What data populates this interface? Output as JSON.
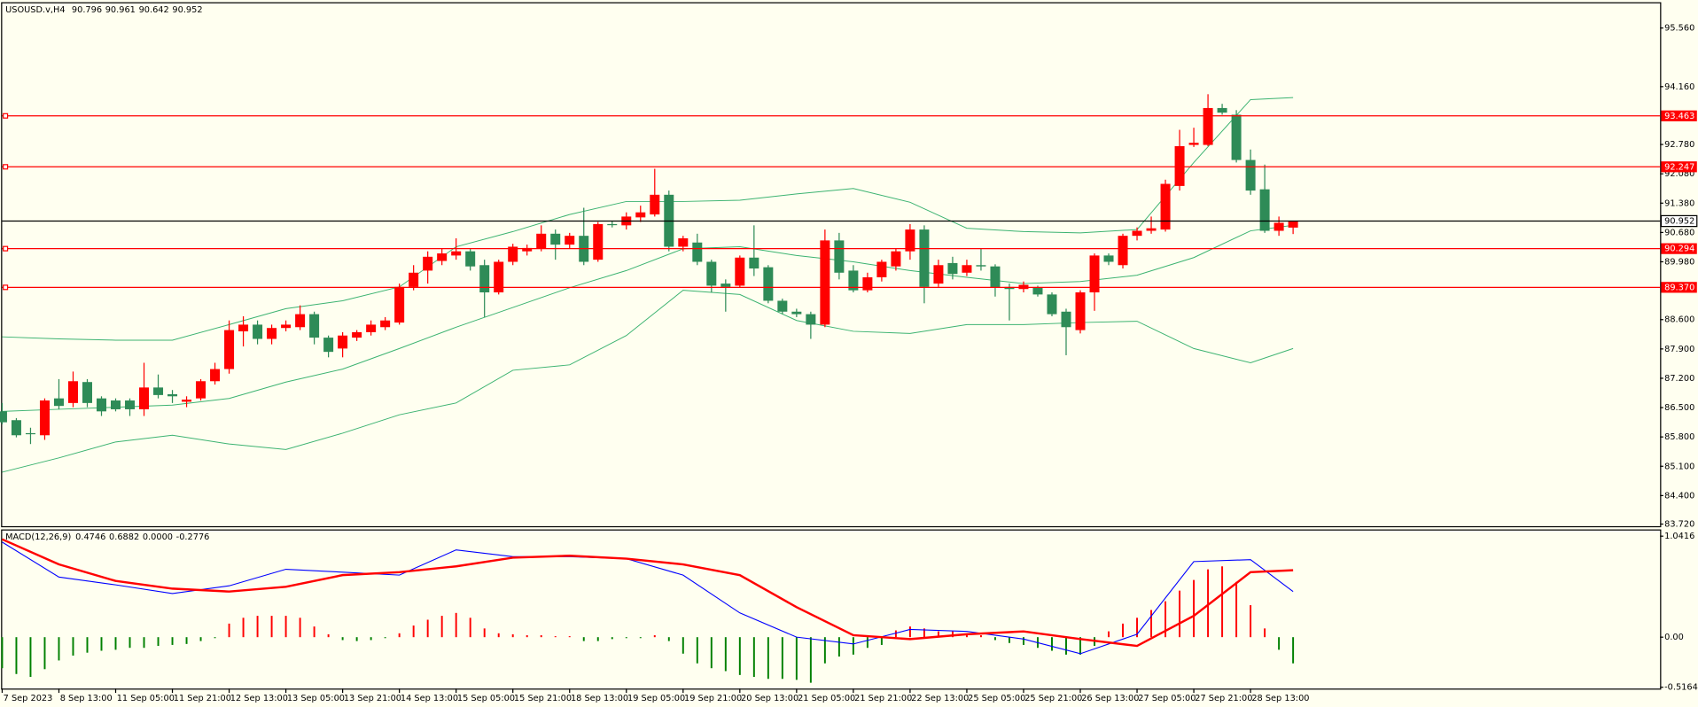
{
  "chart_data": [
    {
      "type": "candlestick",
      "title": "USOUSD.v,H4",
      "categories": [
        "7 Sep 2023",
        null,
        null,
        null,
        "8 Sep 13:00",
        null,
        null,
        null,
        "11 Sep 05:00",
        null,
        null,
        null,
        "11 Sep 21:00",
        null,
        null,
        null,
        "12 Sep 13:00",
        null,
        null,
        null,
        "13 Sep 05:00",
        null,
        null,
        null,
        "13 Sep 21:00",
        null,
        null,
        null,
        "14 Sep 13:00",
        null,
        null,
        null,
        "15 Sep 05:00",
        null,
        null,
        null,
        "15 Sep 21:00",
        null,
        null,
        null,
        "18 Sep 13:00",
        null,
        null,
        null,
        "19 Sep 05:00",
        null,
        null,
        null,
        "19 Sep 21:00",
        null,
        null,
        null,
        "20 Sep 13:00",
        null,
        null,
        null,
        "21 Sep 05:00",
        null,
        null,
        null,
        "21 Sep 21:00",
        null,
        null,
        null,
        "22 Sep 13:00",
        null,
        null,
        null,
        "25 Sep 05:00",
        null,
        null,
        null,
        "25 Sep 21:00",
        null,
        null,
        null,
        "26 Sep 13:00",
        null,
        null,
        null,
        "27 Sep 05:00",
        null,
        null,
        null,
        "27 Sep 21:00",
        null,
        null,
        null,
        "28 Sep 13:00",
        null,
        null,
        null
      ],
      "open": [
        86.41,
        86.2,
        85.89,
        85.84,
        86.72,
        86.61,
        87.11,
        86.72,
        86.67,
        86.67,
        86.46,
        86.98,
        86.82,
        86.64,
        86.72,
        87.13,
        87.42,
        88.32,
        88.48,
        88.14,
        88.4,
        88.42,
        88.73,
        88.17,
        87.91,
        88.17,
        88.3,
        88.42,
        88.53,
        89.38,
        89.77,
        90.0,
        90.13,
        90.23,
        89.9,
        89.25,
        89.98,
        90.23,
        90.29,
        90.65,
        90.39,
        90.6,
        90.03,
        90.88,
        90.85,
        91.04,
        91.11,
        91.58,
        90.34,
        90.44,
        89.98,
        89.46,
        89.41,
        90.08,
        89.85,
        89.05,
        88.79,
        88.73,
        88.48,
        90.49,
        89.77,
        89.3,
        89.61,
        89.87,
        90.23,
        90.75,
        89.46,
        89.95,
        89.72,
        89.9,
        89.87,
        89.38,
        89.33,
        89.36,
        89.2,
        88.79,
        88.35,
        89.25,
        90.13,
        89.9,
        90.6,
        90.72,
        90.75,
        91.79,
        92.77,
        92.77,
        93.65,
        93.49,
        92.41,
        91.71,
        90.72,
        90.796
      ],
      "high": [
        86.61,
        86.25,
        86.02,
        86.72,
        87.18,
        87.36,
        87.18,
        86.77,
        86.72,
        86.72,
        87.57,
        87.29,
        86.92,
        86.77,
        87.18,
        87.57,
        88.58,
        88.68,
        88.58,
        88.48,
        88.58,
        88.94,
        88.79,
        88.22,
        88.3,
        88.35,
        88.58,
        88.66,
        89.46,
        89.9,
        90.23,
        90.29,
        90.54,
        90.29,
        90.03,
        90.03,
        90.41,
        90.39,
        90.85,
        90.75,
        90.67,
        91.27,
        90.93,
        90.96,
        91.16,
        91.32,
        92.2,
        91.68,
        90.6,
        90.65,
        90.03,
        89.56,
        90.13,
        90.85,
        89.9,
        89.1,
        88.86,
        88.79,
        90.75,
        90.67,
        89.9,
        89.72,
        90.03,
        90.29,
        90.88,
        90.85,
        90.03,
        90.1,
        90.03,
        90.29,
        89.92,
        89.46,
        89.51,
        89.41,
        89.25,
        88.86,
        89.3,
        90.18,
        90.18,
        90.65,
        90.8,
        91.06,
        91.94,
        93.13,
        93.18,
        93.98,
        93.75,
        93.6,
        92.66,
        92.3,
        91.06,
        90.961
      ],
      "low": [
        86.1,
        85.79,
        85.63,
        85.73,
        86.46,
        86.51,
        86.51,
        86.3,
        86.41,
        86.3,
        86.3,
        86.72,
        86.61,
        86.51,
        86.67,
        87.05,
        87.31,
        87.96,
        88.01,
        88.01,
        88.32,
        88.35,
        88.01,
        87.7,
        87.7,
        88.09,
        88.22,
        88.35,
        88.48,
        89.3,
        89.46,
        89.9,
        90.03,
        89.77,
        88.66,
        89.2,
        89.9,
        90.13,
        90.23,
        90.03,
        90.29,
        89.9,
        89.98,
        90.8,
        90.75,
        90.93,
        91.06,
        90.23,
        90.23,
        89.9,
        89.25,
        88.79,
        89.36,
        89.64,
        88.99,
        88.73,
        88.66,
        88.14,
        88.42,
        89.56,
        89.25,
        89.25,
        89.51,
        89.77,
        90.03,
        88.99,
        89.38,
        89.56,
        89.64,
        89.77,
        89.15,
        88.58,
        89.25,
        89.15,
        88.68,
        87.75,
        88.27,
        88.81,
        89.9,
        89.82,
        90.49,
        90.65,
        90.7,
        91.68,
        92.72,
        92.74,
        93.49,
        92.35,
        91.58,
        90.67,
        90.6,
        90.642
      ],
      "close": [
        86.15,
        85.84,
        85.87,
        86.67,
        86.54,
        87.13,
        86.61,
        86.41,
        86.46,
        86.46,
        86.98,
        86.8,
        86.77,
        86.69,
        87.13,
        87.42,
        88.35,
        88.48,
        88.14,
        88.4,
        88.48,
        88.73,
        88.17,
        87.83,
        88.22,
        88.3,
        88.48,
        88.58,
        89.38,
        89.72,
        90.1,
        90.18,
        90.23,
        89.87,
        89.25,
        89.98,
        90.34,
        90.31,
        90.65,
        90.39,
        90.6,
        89.98,
        90.88,
        90.86,
        91.06,
        91.16,
        91.58,
        90.34,
        90.54,
        89.98,
        89.41,
        89.38,
        90.08,
        89.82,
        89.05,
        88.79,
        88.73,
        88.48,
        90.49,
        89.72,
        89.3,
        89.61,
        89.98,
        90.23,
        90.75,
        89.38,
        89.9,
        89.69,
        89.9,
        89.87,
        89.36,
        89.33,
        89.43,
        89.2,
        88.73,
        88.42,
        89.25,
        90.13,
        89.98,
        90.6,
        90.72,
        90.78,
        91.84,
        92.74,
        92.82,
        93.65,
        93.54,
        92.41,
        91.68,
        90.72,
        90.91,
        90.952
      ],
      "up_color": "#ff0000",
      "down_color": "#2e8b57",
      "last_price_color": "#000000",
      "ylim": [
        83.67,
        96.15
      ],
      "yticks": [
        {
          "value": 95.56,
          "label": "95.560"
        },
        {
          "value": 94.16,
          "label": "94.160"
        },
        {
          "value": 92.78,
          "label": "92.780"
        },
        {
          "value": 92.08,
          "label": "92.080"
        },
        {
          "value": 91.38,
          "label": "91.380"
        },
        {
          "value": 90.68,
          "label": "90.680"
        },
        {
          "value": 89.98,
          "label": "89.980"
        },
        {
          "value": 88.6,
          "label": "88.600"
        },
        {
          "value": 87.9,
          "label": "87.900"
        },
        {
          "value": 87.2,
          "label": "87.200"
        },
        {
          "value": 86.5,
          "label": "86.500"
        },
        {
          "value": 85.8,
          "label": "85.800"
        },
        {
          "value": 85.1,
          "label": "85.100"
        },
        {
          "value": 84.4,
          "label": "84.400"
        },
        {
          "value": 83.72,
          "label": "83.720"
        }
      ],
      "bands": {
        "x": [
          0,
          4,
          8,
          12,
          16,
          20,
          24,
          28,
          32,
          36,
          40,
          44,
          48,
          52,
          56,
          60,
          64,
          68,
          72,
          76,
          80,
          84,
          88,
          91
        ],
        "color": "#3cb371",
        "series": [
          {
            "values": [
              88.19,
              88.14,
              88.11,
              88.11,
              88.48,
              88.86,
              89.05,
              89.38,
              90.34,
              90.7,
              91.11,
              91.42,
              91.42,
              91.45,
              91.6,
              91.73,
              91.4,
              90.78,
              90.7,
              90.67,
              90.75,
              92.35,
              93.85,
              93.9
            ]
          },
          {
            "values": [
              86.41,
              86.46,
              86.51,
              86.56,
              86.72,
              87.11,
              87.42,
              87.91,
              88.42,
              88.89,
              89.36,
              89.77,
              90.29,
              90.34,
              90.13,
              89.98,
              89.77,
              89.61,
              89.46,
              89.51,
              89.66,
              90.08,
              90.72,
              90.85
            ]
          },
          {
            "values": [
              84.96,
              85.3,
              85.68,
              85.84,
              85.63,
              85.5,
              85.89,
              86.33,
              86.61,
              87.39,
              87.52,
              88.22,
              89.3,
              89.2,
              88.58,
              88.32,
              88.27,
              88.48,
              88.48,
              88.53,
              88.56,
              87.91,
              87.57,
              87.91
            ]
          }
        ]
      },
      "levels": {
        "color": "#ff0000",
        "values": [
          93.463,
          92.247,
          90.294,
          {
            "value": 89.37,
            "label": "89.370"
          }
        ]
      }
    },
    {
      "type": "macd",
      "title": "MACD(12,26,9)",
      "header_values": [
        "0.4746",
        "0.6882",
        "0.0000",
        "-0.2776"
      ],
      "histogram": [
        -0.32,
        -0.38,
        -0.41,
        -0.33,
        -0.24,
        -0.19,
        -0.16,
        -0.14,
        -0.13,
        -0.11,
        -0.11,
        -0.09,
        -0.08,
        -0.07,
        -0.04,
        -0.01,
        0.14,
        0.2,
        0.22,
        0.22,
        0.22,
        0.2,
        0.11,
        0.03,
        -0.03,
        -0.04,
        -0.03,
        -0.01,
        0.04,
        0.12,
        0.18,
        0.22,
        0.25,
        0.2,
        0.09,
        0.04,
        0.03,
        0.02,
        0.02,
        0.01,
        0.01,
        -0.04,
        -0.04,
        -0.02,
        -0.01,
        -0.01,
        0.02,
        -0.04,
        -0.17,
        -0.27,
        -0.32,
        -0.35,
        -0.39,
        -0.41,
        -0.43,
        -0.43,
        -0.44,
        -0.47,
        -0.27,
        -0.2,
        -0.18,
        -0.11,
        -0.08,
        0.07,
        0.11,
        0.09,
        0.06,
        0.06,
        0.03,
        0.02,
        -0.03,
        -0.06,
        -0.08,
        -0.11,
        -0.14,
        -0.18,
        -0.18,
        -0.09,
        0.06,
        0.14,
        0.2,
        0.28,
        0.37,
        0.48,
        0.59,
        0.7,
        0.73,
        0.57,
        0.33,
        0.09,
        -0.13,
        -0.27
      ],
      "pos_color": "#ff0000",
      "neg_color": "#008000",
      "x": [
        0,
        4,
        8,
        12,
        16,
        20,
        24,
        28,
        32,
        36,
        40,
        44,
        48,
        52,
        56,
        60,
        64,
        68,
        72,
        76,
        80,
        84,
        88,
        91
      ],
      "series": [
        {
          "color": "#0000ff",
          "values": [
            0.98,
            0.62,
            0.54,
            0.45,
            0.53,
            0.7,
            0.67,
            0.64,
            0.9,
            0.83,
            0.83,
            0.81,
            0.64,
            0.25,
            0.0,
            -0.07,
            0.08,
            0.06,
            -0.02,
            -0.17,
            0.03,
            0.78,
            0.8,
            0.47
          ]
        },
        {
          "color": "#ff0000",
          "values": [
            1.01,
            0.75,
            0.58,
            0.5,
            0.47,
            0.52,
            0.64,
            0.67,
            0.73,
            0.82,
            0.84,
            0.81,
            0.75,
            0.64,
            0.31,
            0.02,
            -0.02,
            0.03,
            0.06,
            -0.02,
            -0.09,
            0.22,
            0.67,
            0.69
          ]
        }
      ],
      "ylim": [
        -0.53,
        1.1
      ],
      "yticks": [
        1.0416,
        {
          "value": 0,
          "label": "0.00"
        },
        -0.5164
      ]
    }
  ]
}
